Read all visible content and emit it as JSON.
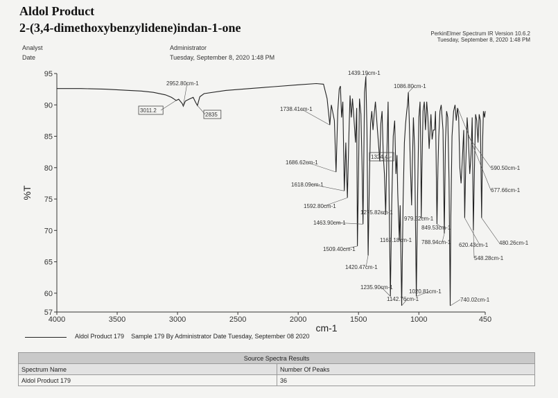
{
  "header": {
    "title": "Aldol Product",
    "subtitle": "2-(3,4-dimethoxybenzylidene)indan-1-one",
    "analyst_label": "Analyst",
    "analyst_value": "Administrator",
    "date_label": "Date",
    "date_value": "Tuesday, September 8, 2020 1:48 PM",
    "software": "PerkinElmer Spectrum IR Version 10.6.2",
    "software_date": "Tuesday, September 8, 2020 1:48 PM"
  },
  "legend": {
    "series_label": "Aldol Product 179",
    "description": "Sample 179 By Administrator Date Tuesday, September 08 2020"
  },
  "table": {
    "title": "Source Spectra Results",
    "col1": "Spectrum Name",
    "col2": "Number Of Peaks",
    "row_name": "Aldol Product 179",
    "row_peaks": "36"
  },
  "chart_data": {
    "type": "line",
    "xlabel": "cm-1",
    "ylabel": "%T",
    "xlim": [
      4000,
      450
    ],
    "ylim": [
      57,
      95
    ],
    "x_ticks": [
      4000,
      3500,
      3000,
      2500,
      2000,
      1500,
      1000,
      450
    ],
    "y_ticks": [
      95,
      90,
      85,
      80,
      75,
      70,
      65,
      60,
      57
    ],
    "line_color": "#222222",
    "series": [
      {
        "name": "Aldol Product 179",
        "points": [
          [
            4000,
            92.6
          ],
          [
            3800,
            92.6
          ],
          [
            3600,
            92.5
          ],
          [
            3400,
            92.3
          ],
          [
            3300,
            92.2
          ],
          [
            3200,
            92.0
          ],
          [
            3100,
            91.6
          ],
          [
            3050,
            91.2
          ],
          [
            3011,
            90.7
          ],
          [
            2990,
            90.9
          ],
          [
            2960,
            90.2
          ],
          [
            2952,
            89.8
          ],
          [
            2935,
            90.6
          ],
          [
            2905,
            90.9
          ],
          [
            2870,
            91.2
          ],
          [
            2850,
            90.4
          ],
          [
            2835,
            89.9
          ],
          [
            2815,
            91.3
          ],
          [
            2780,
            91.8
          ],
          [
            2600,
            92.3
          ],
          [
            2400,
            92.6
          ],
          [
            2200,
            92.9
          ],
          [
            2000,
            93.2
          ],
          [
            1850,
            93.4
          ],
          [
            1790,
            93.3
          ],
          [
            1760,
            91.0
          ],
          [
            1738,
            86.8
          ],
          [
            1725,
            90.0
          ],
          [
            1700,
            87.5
          ],
          [
            1686,
            79.3
          ],
          [
            1672,
            89.0
          ],
          [
            1660,
            92.5
          ],
          [
            1650,
            93.0
          ],
          [
            1640,
            88.0
          ],
          [
            1630,
            90.5
          ],
          [
            1618,
            76.3
          ],
          [
            1605,
            84.0
          ],
          [
            1600,
            80.0
          ],
          [
            1592,
            75.2
          ],
          [
            1580,
            85.0
          ],
          [
            1570,
            91.5
          ],
          [
            1560,
            88.0
          ],
          [
            1550,
            91.0
          ],
          [
            1540,
            88.5
          ],
          [
            1525,
            84.0
          ],
          [
            1515,
            89.5
          ],
          [
            1509,
            67.5
          ],
          [
            1500,
            79.0
          ],
          [
            1492,
            91.0
          ],
          [
            1480,
            88.5
          ],
          [
            1470,
            80.0
          ],
          [
            1463,
            71.0
          ],
          [
            1455,
            83.0
          ],
          [
            1450,
            92.0
          ],
          [
            1439,
            94.5
          ],
          [
            1430,
            86.0
          ],
          [
            1420,
            66.0
          ],
          [
            1410,
            78.0
          ],
          [
            1400,
            87.0
          ],
          [
            1390,
            89.0
          ],
          [
            1380,
            86.0
          ],
          [
            1370,
            88.5
          ],
          [
            1360,
            90.5
          ],
          [
            1345,
            86.5
          ],
          [
            1335,
            84.0
          ],
          [
            1324,
            81.0
          ],
          [
            1315,
            87.0
          ],
          [
            1305,
            89.0
          ],
          [
            1295,
            82.0
          ],
          [
            1285,
            79.0
          ],
          [
            1275,
            72.5
          ],
          [
            1265,
            82.0
          ],
          [
            1255,
            90.5
          ],
          [
            1245,
            73.0
          ],
          [
            1236,
            59.5
          ],
          [
            1225,
            74.0
          ],
          [
            1212,
            85.0
          ],
          [
            1200,
            87.5
          ],
          [
            1190,
            79.0
          ],
          [
            1181,
            82.0
          ],
          [
            1175,
            76.0
          ],
          [
            1162,
            68.5
          ],
          [
            1155,
            74.0
          ],
          [
            1142,
            58.0
          ],
          [
            1130,
            75.0
          ],
          [
            1120,
            84.0
          ],
          [
            1110,
            87.0
          ],
          [
            1100,
            89.0
          ],
          [
            1094,
            90.0
          ],
          [
            1087,
            92.0
          ],
          [
            1080,
            88.0
          ],
          [
            1070,
            80.0
          ],
          [
            1060,
            74.0
          ],
          [
            1052,
            82.0
          ],
          [
            1045,
            88.0
          ],
          [
            1035,
            83.0
          ],
          [
            1021,
            59.5
          ],
          [
            1010,
            76.0
          ],
          [
            1000,
            88.0
          ],
          [
            990,
            90.5
          ],
          [
            985,
            84.0
          ],
          [
            980,
            72.0
          ],
          [
            975,
            79.0
          ],
          [
            965,
            89.0
          ],
          [
            955,
            90.5
          ],
          [
            945,
            86.0
          ],
          [
            935,
            90.5
          ],
          [
            925,
            88.0
          ],
          [
            915,
            83.0
          ],
          [
            900,
            88.5
          ],
          [
            890,
            84.5
          ],
          [
            880,
            86.0
          ],
          [
            870,
            86.0
          ],
          [
            862,
            89.0
          ],
          [
            850,
            71.0
          ],
          [
            842,
            80.0
          ],
          [
            835,
            85.0
          ],
          [
            825,
            89.0
          ],
          [
            815,
            90.0
          ],
          [
            800,
            86.0
          ],
          [
            789,
            69.5
          ],
          [
            780,
            84.0
          ],
          [
            770,
            89.0
          ],
          [
            760,
            88.0
          ],
          [
            750,
            78.0
          ],
          [
            740,
            58.0
          ],
          [
            735,
            72.0
          ],
          [
            725,
            85.0
          ],
          [
            712,
            89.0
          ],
          [
            700,
            90.0
          ],
          [
            690,
            87.5
          ],
          [
            680,
            89.5
          ],
          [
            670,
            88.0
          ],
          [
            660,
            80.0
          ],
          [
            650,
            77.5
          ],
          [
            638,
            82.0
          ],
          [
            628,
            86.0
          ],
          [
            620,
            72.0
          ],
          [
            612,
            80.0
          ],
          [
            600,
            88.0
          ],
          [
            590,
            85.0
          ],
          [
            578,
            79.0
          ],
          [
            568,
            82.0
          ],
          [
            558,
            88.0
          ],
          [
            548,
            70.0
          ],
          [
            540,
            79.0
          ],
          [
            530,
            88.5
          ],
          [
            520,
            87.5
          ],
          [
            510,
            84.0
          ],
          [
            500,
            88.5
          ],
          [
            490,
            87.5
          ],
          [
            480,
            72.0
          ],
          [
            472,
            84.0
          ],
          [
            465,
            89.0
          ],
          [
            455,
            88.0
          ],
          [
            450,
            89.0
          ]
        ]
      }
    ],
    "annotations": [
      {
        "label": "2952.80cm-1",
        "x": 2952.8,
        "y": 89.8,
        "boxed": false
      },
      {
        "label": "3011.2",
        "x": 3011.2,
        "y": 90.7,
        "boxed": true
      },
      {
        "label": "2835",
        "x": 2835,
        "y": 89.9,
        "boxed": true
      },
      {
        "label": "1738.41cm-1",
        "x": 1738.41,
        "y": 86.8,
        "boxed": false
      },
      {
        "label": "1686.62cm-1",
        "x": 1686.62,
        "y": 79.3,
        "boxed": false
      },
      {
        "label": "1618.09cm-1",
        "x": 1618.09,
        "y": 76.3,
        "boxed": false
      },
      {
        "label": "1592.80cm-1",
        "x": 1592.8,
        "y": 75.2,
        "boxed": false
      },
      {
        "label": "1463.90cm-1",
        "x": 1463.9,
        "y": 71.0,
        "boxed": false
      },
      {
        "label": "1509.40cm-1",
        "x": 1509.4,
        "y": 67.5,
        "boxed": false
      },
      {
        "label": "1439.19cm-1",
        "x": 1439.19,
        "y": 94.5,
        "boxed": false
      },
      {
        "label": "1420.47cm-1",
        "x": 1420.47,
        "y": 66.0,
        "boxed": false
      },
      {
        "label": "1324.4",
        "x": 1324.4,
        "y": 81.0,
        "boxed": true
      },
      {
        "label": "1275.82cm-1",
        "x": 1275.82,
        "y": 72.5,
        "boxed": false
      },
      {
        "label": "1235.90cm-1",
        "x": 1235.9,
        "y": 59.5,
        "boxed": false
      },
      {
        "label": "1162.18cm-1",
        "x": 1162.18,
        "y": 68.5,
        "boxed": false
      },
      {
        "label": "1142.76cm-1",
        "x": 1142.76,
        "y": 58.0,
        "boxed": false
      },
      {
        "label": "1086.80cm-1",
        "x": 1086.8,
        "y": 92.0,
        "boxed": false
      },
      {
        "label": "1020.81cm-1",
        "x": 1020.81,
        "y": 59.5,
        "boxed": false
      },
      {
        "label": "979.52cm-1",
        "x": 979.52,
        "y": 72.0,
        "boxed": false
      },
      {
        "label": "849.53cm-1",
        "x": 849.53,
        "y": 71.0,
        "boxed": false
      },
      {
        "label": "788.94cm-1",
        "x": 788.94,
        "y": 69.5,
        "boxed": false
      },
      {
        "label": "740.02cm-1",
        "x": 740.02,
        "y": 58.0,
        "boxed": false
      },
      {
        "label": "620.43cm-1",
        "x": 620.43,
        "y": 72.0,
        "boxed": false
      },
      {
        "label": "548.28cm-1",
        "x": 548.28,
        "y": 70.0,
        "boxed": false
      },
      {
        "label": "590.50cm-1",
        "x": 590.5,
        "y": 85.0,
        "boxed": false
      },
      {
        "label": "677.66cm-1",
        "x": 677.66,
        "y": 89.5,
        "boxed": false
      },
      {
        "label": "480.26cm-1",
        "x": 480.26,
        "y": 72.0,
        "boxed": false
      }
    ]
  }
}
